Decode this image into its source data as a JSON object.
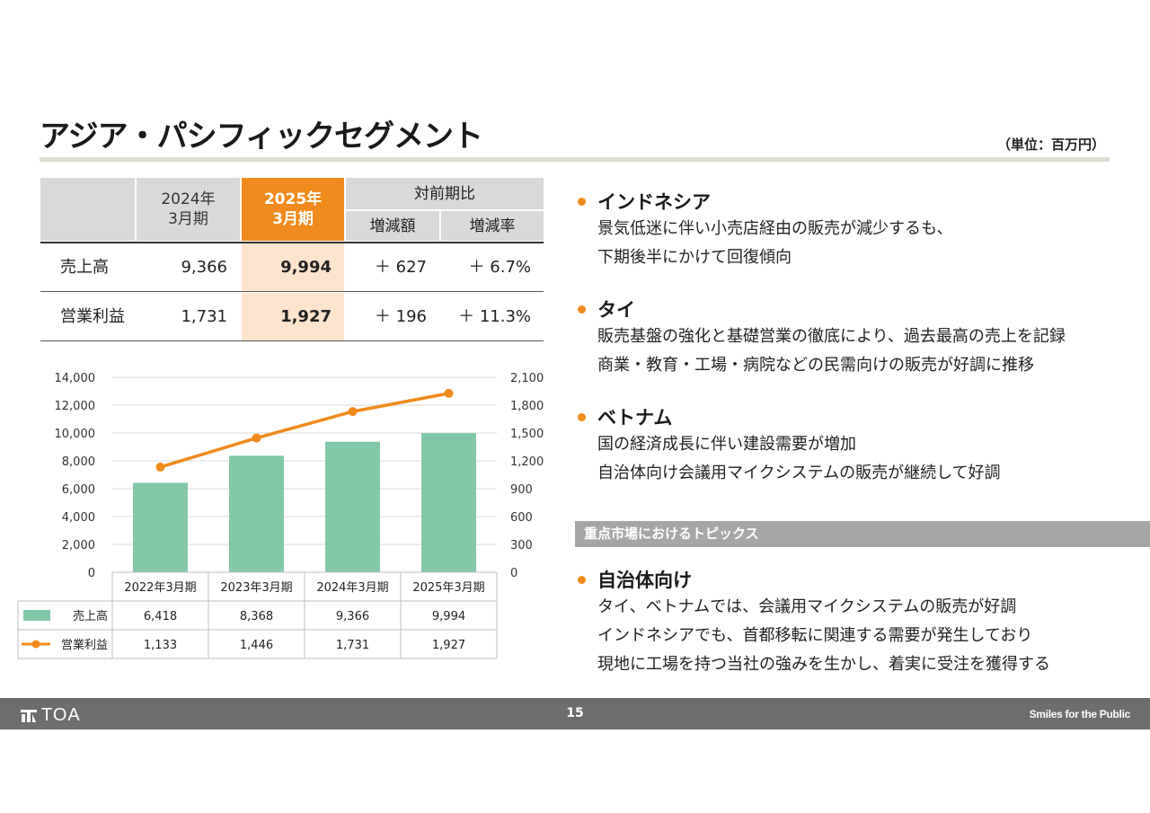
{
  "page": {
    "title": "アジア・パシフィックセグメント",
    "unit": "（単位：百万円）",
    "page_number": "15"
  },
  "summary_table": {
    "header": {
      "col_2024": [
        "2024年",
        "3月期"
      ],
      "col_2025": [
        "2025年",
        "3月期"
      ],
      "yoy": "対前期比",
      "diff": "増減額",
      "rate": "増減率"
    },
    "rows": [
      {
        "label": "売上高",
        "v2024": "9,366",
        "v2025": "9,994",
        "diff": "＋ 627",
        "rate": "＋ 6.7%"
      },
      {
        "label": "営業利益",
        "v2024": "1,731",
        "v2025": "1,927",
        "diff": "＋ 196",
        "rate": "＋ 11.3%"
      }
    ]
  },
  "chart_data": {
    "type": "bar",
    "categories": [
      "2022年3月期",
      "2023年3月期",
      "2024年3月期",
      "2025年3月期"
    ],
    "series": [
      {
        "name": "売上高",
        "type": "bar",
        "axis": "left",
        "values": [
          6418,
          8368,
          9366,
          9994
        ],
        "labels": [
          "6,418",
          "8,368",
          "9,366",
          "9,994"
        ],
        "color": "#82c8a8"
      },
      {
        "name": "営業利益",
        "type": "line",
        "axis": "right",
        "values": [
          1133,
          1446,
          1731,
          1927
        ],
        "labels": [
          "1,133",
          "1,446",
          "1,731",
          "1,927"
        ],
        "color": "#f08a1c"
      }
    ],
    "y_left": {
      "min": 0,
      "max": 14000,
      "ticks": [
        "0",
        "2,000",
        "4,000",
        "6,000",
        "8,000",
        "10,000",
        "12,000",
        "14,000"
      ]
    },
    "y_right": {
      "min": 0,
      "max": 2100,
      "ticks": [
        "0",
        "300",
        "600",
        "900",
        "1,200",
        "1,500",
        "1,800",
        "2,100"
      ]
    },
    "grid": true,
    "legend": "data-table"
  },
  "bullets": [
    {
      "heading": "インドネシア",
      "lines": [
        "景気低迷に伴い小売店経由の販売が減少するも、",
        "下期後半にかけて回復傾向"
      ]
    },
    {
      "heading": "タイ",
      "lines": [
        "販売基盤の強化と基礎営業の徹底により、過去最高の売上を記録",
        "商業・教育・工場・病院などの民需向けの販売が好調に推移"
      ]
    },
    {
      "heading": "ベトナム",
      "lines": [
        "国の経済成長に伴い建設需要が増加",
        "自治体向け会議用マイクシステムの販売が継続して好調"
      ]
    }
  ],
  "topics": {
    "bar_label": "重点市場におけるトピックス",
    "heading": "自治体向け",
    "lines": [
      "タイ、ベトナムでは、会議用マイクシステムの販売が好調",
      "インドネシアでも、首都移転に関連する需要が発生しており",
      "現地に工場を持つ当社の強みを生かし、着実に受注を獲得する"
    ]
  },
  "footer": {
    "logo_text": "TOA",
    "tagline": "Smiles for the Public"
  }
}
